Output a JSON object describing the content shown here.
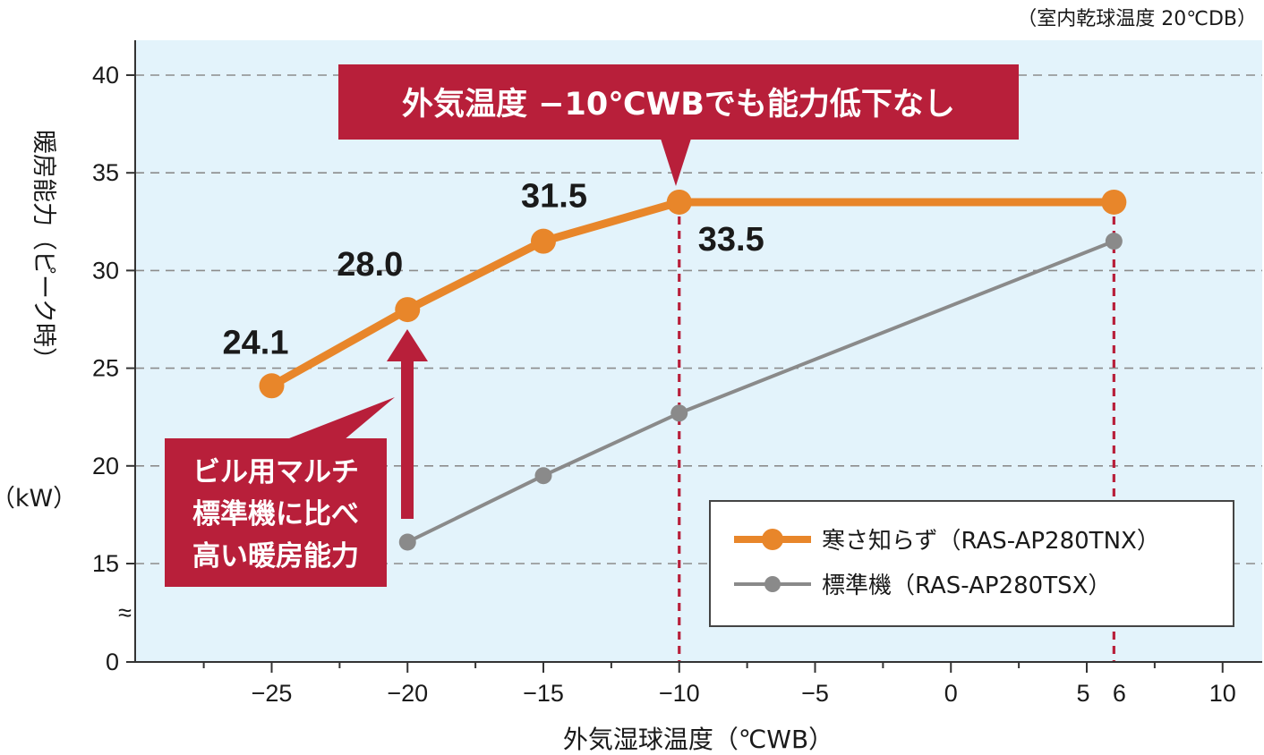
{
  "chart_data": {
    "type": "line",
    "condition_note": "（室内乾球温度 20℃DB）",
    "xlabel": "外気湿球温度（℃WB）",
    "ylabel": "暖房能力（ピーク時）",
    "ylabel_unit": "（kW）",
    "xlim": [
      -30,
      12
    ],
    "ylim": [
      0,
      42
    ],
    "y_axis_break": "≈",
    "x_ticks": [
      {
        "value": -25,
        "label": "−25"
      },
      {
        "value": -20,
        "label": "−20"
      },
      {
        "value": -15,
        "label": "−15"
      },
      {
        "value": -10,
        "label": "−10"
      },
      {
        "value": -5,
        "label": "−5"
      },
      {
        "value": 0,
        "label": "0"
      },
      {
        "value": 5,
        "label": "5"
      },
      {
        "value": 6,
        "label": "6"
      },
      {
        "value": 10,
        "label": "10"
      }
    ],
    "y_ticks": [
      {
        "value": 0,
        "label": "0"
      },
      {
        "value": 15,
        "label": "15"
      },
      {
        "value": 20,
        "label": "20"
      },
      {
        "value": 25,
        "label": "25"
      },
      {
        "value": 30,
        "label": "30"
      },
      {
        "value": 35,
        "label": "35"
      },
      {
        "value": 40,
        "label": "40"
      }
    ],
    "grid": true,
    "series": [
      {
        "name": "寒さ知らず（RAS-AP280TNX）",
        "color": "#e8862a",
        "x": [
          -25,
          -20,
          -15,
          -10,
          6
        ],
        "y": [
          24.1,
          28.0,
          31.5,
          33.5,
          33.5
        ],
        "labels": [
          "24.1",
          "28.0",
          "31.5",
          "33.5",
          ""
        ]
      },
      {
        "name": "標準機（RAS-AP280TSX）",
        "color": "#8a8a8a",
        "x": [
          -20,
          -15,
          -10,
          6
        ],
        "y": [
          16.1,
          19.5,
          22.7,
          31.5
        ],
        "labels": [
          "",
          "",
          "",
          ""
        ]
      }
    ],
    "reference_lines_x": [
      -10,
      6
    ],
    "annotations": {
      "top_callout": "外気温度 −10℃WBでも能力低下なし",
      "left_callout": [
        "ビル用マルチ",
        "標準機に比べ",
        "高い暖房能力"
      ]
    },
    "legend_position": "bottom-right",
    "colors": {
      "plot_background": "#e3f3fb",
      "callout": "#b81f3a",
      "reference_line": "#b81f3a",
      "grid": "#8c8c8c"
    }
  }
}
